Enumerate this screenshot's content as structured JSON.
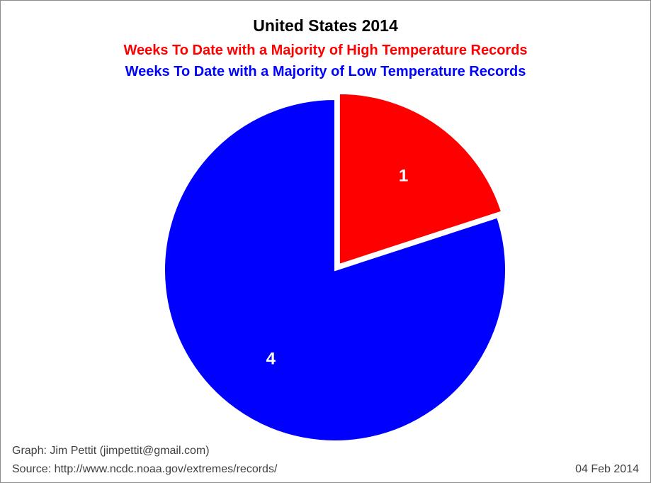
{
  "chart_data": {
    "type": "pie",
    "title": "United States 2014",
    "subtitles": [
      {
        "text": "Weeks To Date with a Majority of High Temperature Records",
        "color": "#ff0000"
      },
      {
        "text": "Weeks To Date with a Majority of Low Temperature Records",
        "color": "#0000ff"
      }
    ],
    "slices": [
      {
        "label": "High Temperature Records",
        "value": 1,
        "color": "#ff0000",
        "exploded": true
      },
      {
        "label": "Low Temperature Records",
        "value": 4,
        "color": "#0000ff",
        "exploded": false
      }
    ],
    "data_label_color": "#ffffff"
  },
  "footer": {
    "graph_credit": "Graph: Jim Pettit (jimpettit@gmail.com)",
    "source": "Source: http://www.ncdc.noaa.gov/extremes/records/",
    "date": "04 Feb 2014"
  }
}
